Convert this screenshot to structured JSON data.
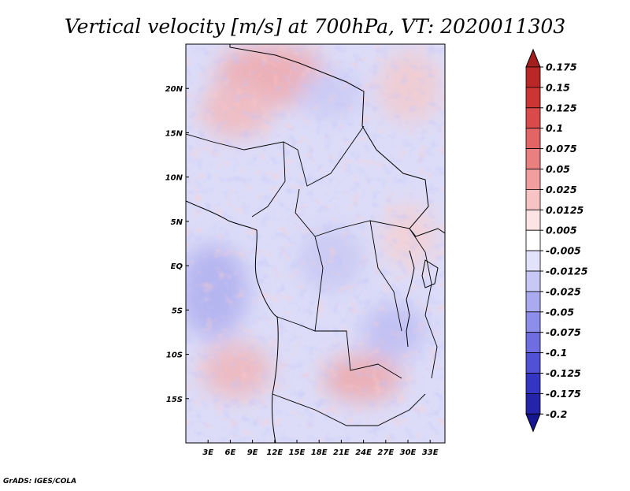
{
  "chart_data": {
    "type": "heatmap",
    "title": "Vertical velocity [m/s] at 700hPa, VT: 2020011303",
    "x_ticks": [
      "3E",
      "6E",
      "9E",
      "12E",
      "15E",
      "18E",
      "21E",
      "24E",
      "27E",
      "30E",
      "33E"
    ],
    "y_ticks": [
      "20N",
      "15N",
      "10N",
      "5N",
      "EQ",
      "5S",
      "10S",
      "15S"
    ],
    "xlim": [
      0,
      35
    ],
    "ylim": [
      -20,
      25
    ],
    "colorbar": {
      "levels": [
        "0.175",
        "0.15",
        "0.125",
        "0.1",
        "0.075",
        "0.05",
        "0.025",
        "0.0125",
        "0.005",
        "-0.005",
        "-0.0125",
        "-0.025",
        "-0.05",
        "-0.075",
        "-0.1",
        "-0.125",
        "-0.175",
        "-0.2"
      ],
      "colors": [
        "#a51e1e",
        "#bb2727",
        "#cd3434",
        "#da4a4a",
        "#e26464",
        "#ea7f7f",
        "#f29e9e",
        "#f8c3c3",
        "#fde4e4",
        "#ffffff",
        "#e2e2fb",
        "#c8c8f6",
        "#aaaaf0",
        "#8d8deb",
        "#6e6ee2",
        "#5151d6",
        "#3535c4",
        "#2424aa",
        "#161690"
      ]
    }
  },
  "footer": {
    "credit": "GrADS: IGES/COLA"
  }
}
